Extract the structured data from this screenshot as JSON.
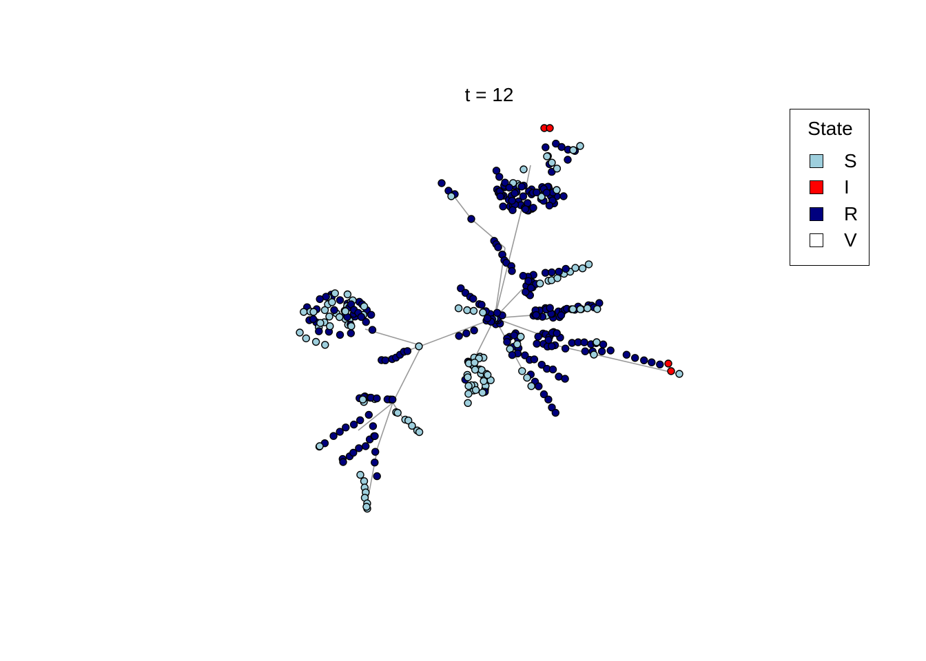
{
  "title": "t = 12",
  "legend": {
    "title": "State",
    "items": [
      {
        "label": "S",
        "color": "#9ecfdd"
      },
      {
        "label": "I",
        "color": "#ff0000"
      },
      {
        "label": "R",
        "color": "#00007f"
      },
      {
        "label": "V",
        "color": "#ffffff"
      }
    ]
  },
  "edge_color": "#999999",
  "node_stroke": "#000000"
}
